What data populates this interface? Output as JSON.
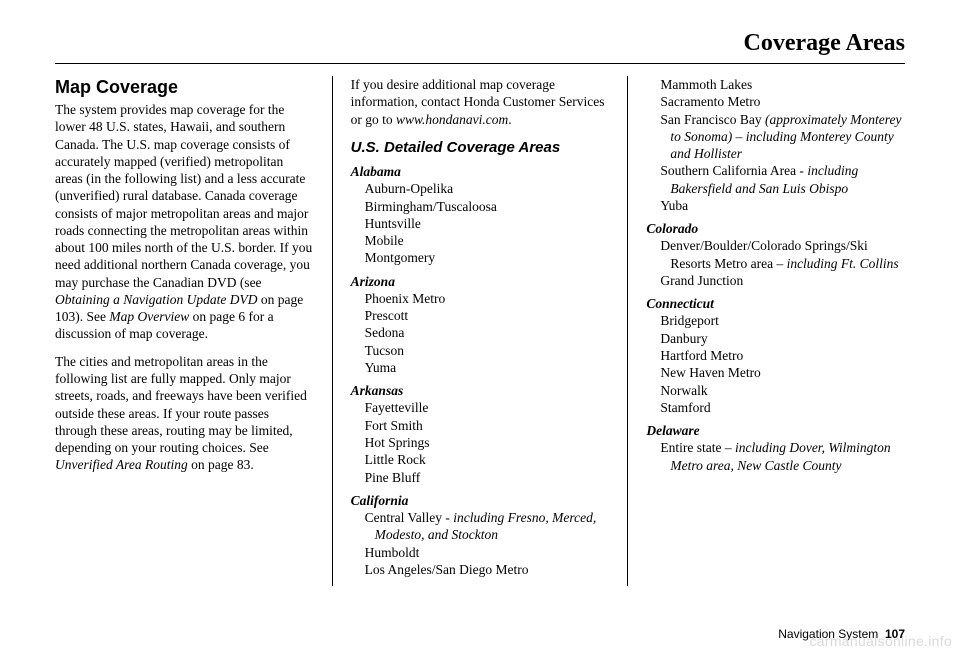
{
  "header": {
    "title": "Coverage Areas"
  },
  "col1": {
    "h1": "Map Coverage",
    "para1a": "The system provides map coverage for the lower 48 U.S. states, Hawaii, and southern Canada. The U.S. map coverage consists of accurately mapped (verified) metropolitan areas (in the following list) and a less accurate (unverified) rural database. Canada coverage consists of major metropolitan areas and major roads connecting the metropolitan areas within about 100 miles north of the U.S. border. If you need additional northern Canada coverage, you may purchase the Canadian DVD (see ",
    "para1b_i": "Obtaining a Navigation Update DVD",
    "para1c": " on page 103). See ",
    "para1d_i": "Map Overview",
    "para1e": " on page 6 for a discussion of map coverage.",
    "para2a": "The cities and metropolitan areas in the following list are fully mapped. Only major streets, roads, and freeways have been verified outside these areas. If your route passes through these areas, routing may be limited, depending on your routing choices. See ",
    "para2b_i": "Unverified Area Routing",
    "para2c": " on page 83."
  },
  "col2": {
    "intro_a": "If you desire additional map coverage information, contact Honda Customer Services or go to ",
    "intro_b_i": "www.hondanavi.com",
    "intro_c": ".",
    "h2": "U.S. Detailed Coverage Areas",
    "alabama": {
      "name": "Alabama",
      "cities": [
        "Auburn-Opelika",
        "Birmingham/Tuscaloosa",
        "Huntsville",
        "Mobile",
        "Montgomery"
      ]
    },
    "arizona": {
      "name": "Arizona",
      "cities": [
        "Phoenix Metro",
        "Prescott",
        "Sedona",
        "Tucson",
        "Yuma"
      ]
    },
    "arkansas": {
      "name": "Arkansas",
      "cities": [
        "Fayetteville",
        "Fort Smith",
        "Hot Springs",
        "Little Rock",
        "Pine Bluff"
      ]
    },
    "california": {
      "name": "California",
      "c1a": "Central Valley - ",
      "c1b_i": "including Fresno, Merced, Modesto, and Stockton",
      "c2": "Humboldt",
      "c3": "Los Angeles/San Diego Metro"
    }
  },
  "col3": {
    "california_cont": {
      "c4": "Mammoth Lakes",
      "c5": "Sacramento Metro",
      "c6a": "San Francisco Bay ",
      "c6b_i": "(approximately Monterey to Sonoma) – including Monterey County and Hollister",
      "c7a": "Southern California Area - ",
      "c7b_i": "including Bakersfield and San Luis Obispo",
      "c8": "Yuba"
    },
    "colorado": {
      "name": "Colorado",
      "c1a": "Denver/Boulder/Colorado Springs/Ski Resorts Metro area ",
      "c1b_i": "– including Ft. Collins",
      "c2": "Grand Junction"
    },
    "connecticut": {
      "name": "Connecticut",
      "cities": [
        "Bridgeport",
        "Danbury",
        "Hartford Metro",
        "New Haven Metro",
        "Norwalk",
        "Stamford"
      ]
    },
    "delaware": {
      "name": "Delaware",
      "c1a": "Entire state ",
      "c1b_i": "– including Dover, Wilmington Metro area, New Castle County"
    }
  },
  "footer": {
    "label": "Navigation System",
    "page": "107"
  },
  "watermark": "carmanualsonline.info"
}
